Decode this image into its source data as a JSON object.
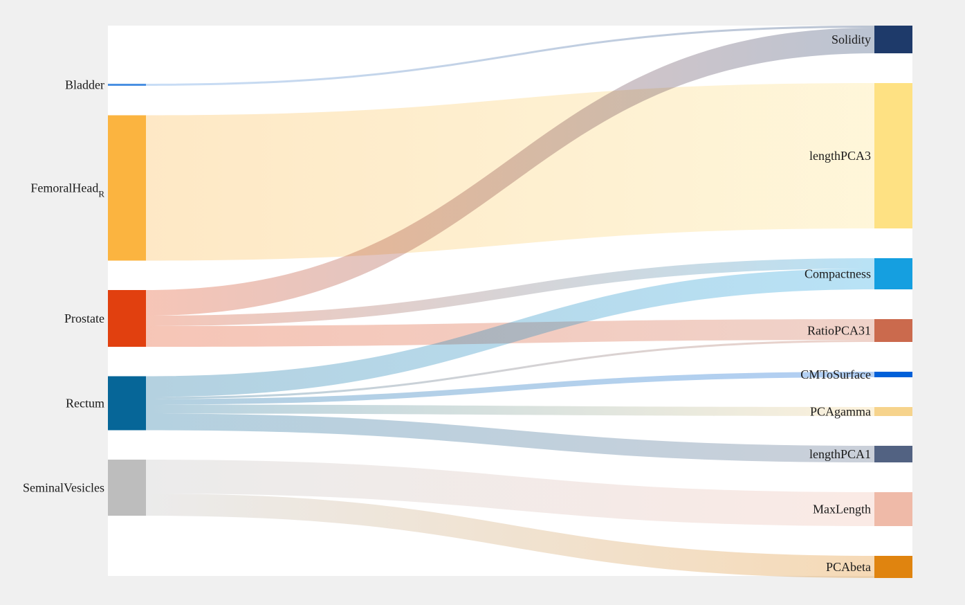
{
  "chart_data": {
    "type": "sankey",
    "background": "#f0f0f0",
    "plot_background": "#ffffff",
    "sources": [
      {
        "id": "Bladder",
        "label": "Bladder",
        "subscript": "",
        "color": "#4a90e2"
      },
      {
        "id": "FemoralHead_R",
        "label": "FemoralHead",
        "subscript": "R",
        "color": "#fbb440"
      },
      {
        "id": "Prostate",
        "label": "Prostate",
        "subscript": "",
        "color": "#e1400f"
      },
      {
        "id": "Rectum",
        "label": "Rectum",
        "subscript": "",
        "color": "#066698"
      },
      {
        "id": "SeminalVesicles",
        "label": "SeminalVesicles",
        "subscript": "",
        "color": "#bdbdbd"
      }
    ],
    "targets": [
      {
        "id": "Solidity",
        "label": "Solidity",
        "color": "#1e3a6a"
      },
      {
        "id": "lengthPCA3",
        "label": "lengthPCA3",
        "color": "#fee183"
      },
      {
        "id": "Compactness",
        "label": "Compactness",
        "color": "#159fe0"
      },
      {
        "id": "RatioPCA31",
        "label": "RatioPCA31",
        "color": "#cb6a4d"
      },
      {
        "id": "CMToSurface",
        "label": "CMToSurface",
        "color": "#0060d9"
      },
      {
        "id": "PCAgamma",
        "label": "PCAgamma",
        "color": "#f6d38c"
      },
      {
        "id": "lengthPCA1",
        "label": "lengthPCA1",
        "color": "#526282"
      },
      {
        "id": "MaxLength",
        "label": "MaxLength",
        "color": "#efbaa8"
      },
      {
        "id": "PCAbeta",
        "label": "PCAbeta",
        "color": "#e0840f"
      }
    ],
    "links": [
      {
        "source": "Bladder",
        "target": "Solidity",
        "value": 3
      },
      {
        "source": "FemoralHead_R",
        "target": "lengthPCA3",
        "value": 210
      },
      {
        "source": "Prostate",
        "target": "Solidity",
        "value": 37
      },
      {
        "source": "Prostate",
        "target": "Compactness",
        "value": 15
      },
      {
        "source": "Prostate",
        "target": "RatioPCA31",
        "value": 30
      },
      {
        "source": "Rectum",
        "target": "Compactness",
        "value": 30
      },
      {
        "source": "Rectum",
        "target": "RatioPCA31",
        "value": 3
      },
      {
        "source": "Rectum",
        "target": "CMToSurface",
        "value": 8
      },
      {
        "source": "Rectum",
        "target": "PCAgamma",
        "value": 13
      },
      {
        "source": "Rectum",
        "target": "lengthPCA1",
        "value": 24
      },
      {
        "source": "SeminalVesicles",
        "target": "MaxLength",
        "value": 49
      },
      {
        "source": "SeminalVesicles",
        "target": "PCAbeta",
        "value": 32
      }
    ]
  }
}
